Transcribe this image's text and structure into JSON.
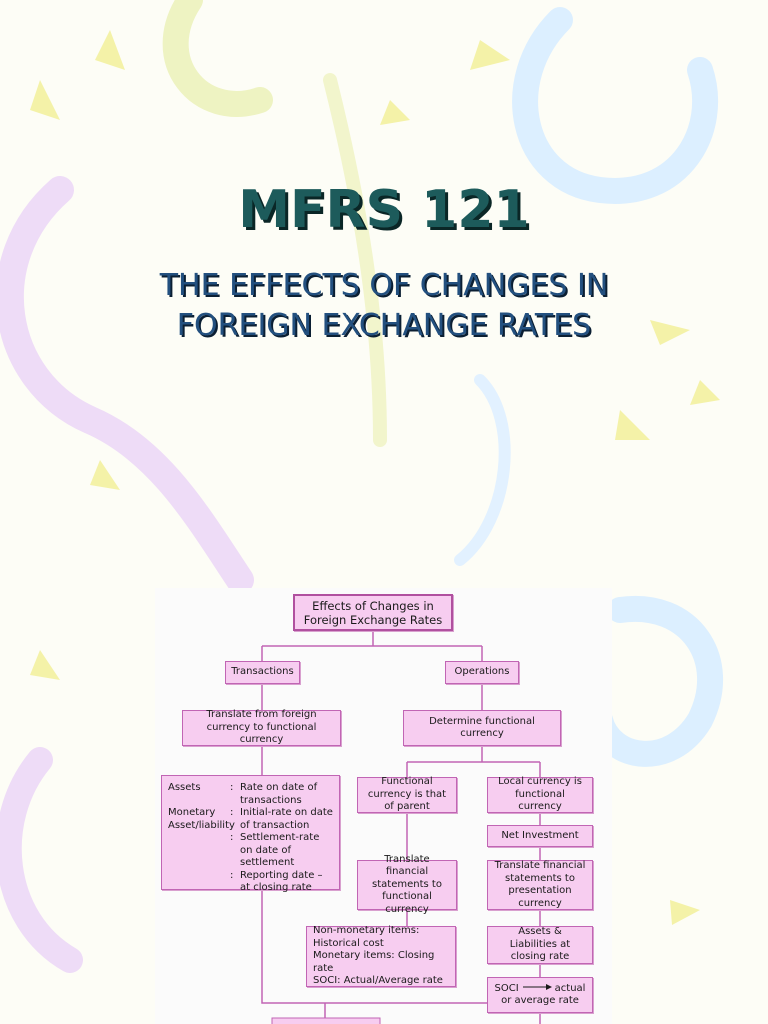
{
  "title": "MFRS 121",
  "subtitle": "THE EFFECTS OF CHANGES IN FOREIGN EXCHANGE RATES",
  "diagram": {
    "nodes": [
      {
        "label": "Effects of Changes in Foreign Exchange Rates"
      },
      {
        "label": "Transactions"
      },
      {
        "label": "Operations"
      },
      {
        "label": "Translate from foreign currency to functional currency"
      },
      {
        "label": "Determine functional currency"
      },
      {
        "items": [
          {
            "term": "Assets",
            "separator": ":",
            "text": "Rate on date of transactions"
          },
          {
            "term": "Monetary Asset/liability",
            "separator": ":",
            "text": "Initial-rate on date of transaction"
          },
          {
            "separator": ":",
            "text": "Settlement-rate on date of settlement"
          },
          {
            "separator": ":",
            "text": "Reporting date – at closing rate"
          }
        ]
      },
      {
        "label": "Functional currency is that of parent"
      },
      {
        "label": "Local currency is functional currency"
      },
      {
        "label": "Net Investment"
      },
      {
        "label": "Translate financial statements to functional currency"
      },
      {
        "label": "Translate financial statements to presentation currency"
      },
      {
        "lines": [
          "Non-monetary items: Historical cost",
          "Monetary items: Closing rate",
          "SOCI: Actual/Average rate"
        ]
      },
      {
        "label": "Assets & Liabilities at closing rate"
      },
      {
        "from": "SOCI",
        "to": "actual or average rate"
      }
    ]
  }
}
